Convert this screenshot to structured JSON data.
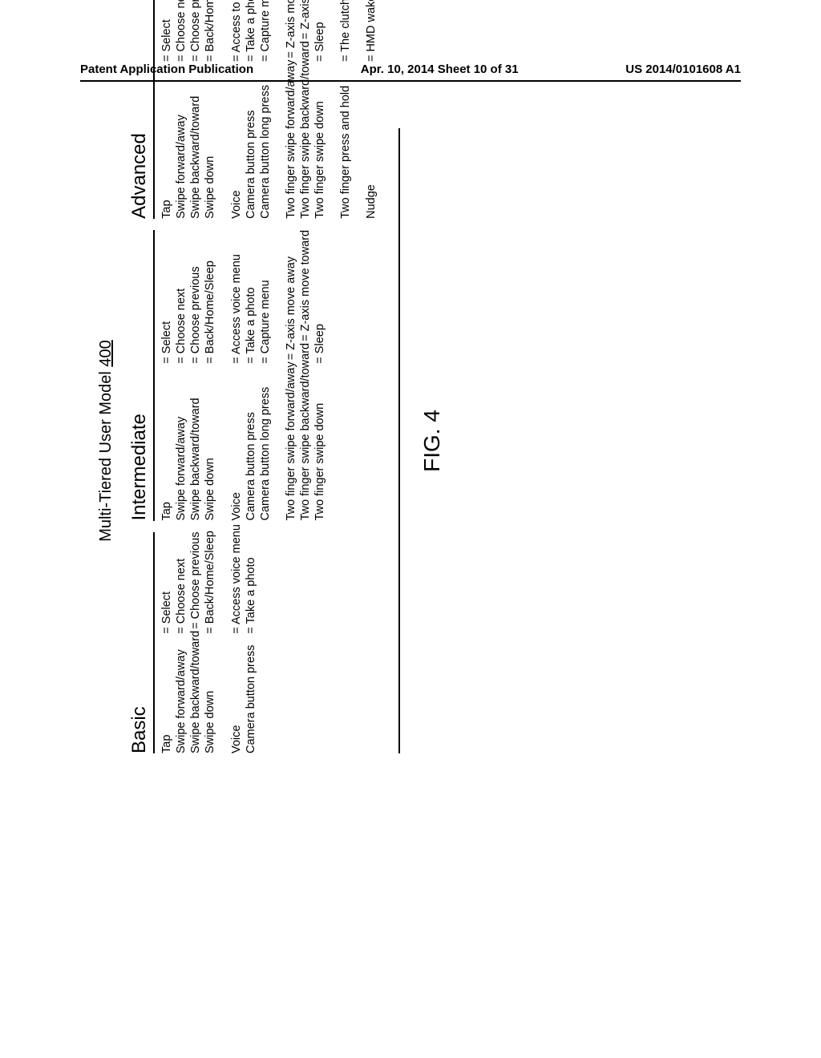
{
  "header": {
    "left": "Patent Application Publication",
    "center": "Apr. 10, 2014  Sheet 10 of 31",
    "right": "US 2014/0101608 A1"
  },
  "figure": {
    "title_prefix": "Multi-Tiered User Model ",
    "title_ref": "400",
    "label": "FIG. 4"
  },
  "tiers": [
    {
      "name": "Basic",
      "groups": [
        [
          {
            "gesture": "Tap",
            "result": "Select"
          },
          {
            "gesture": "Swipe forward/away",
            "result": "Choose next"
          },
          {
            "gesture": "Swipe backward/toward",
            "result": "Choose previous"
          },
          {
            "gesture": "Swipe down",
            "result": "Back/Home/Sleep"
          }
        ],
        [
          {
            "gesture": "Voice",
            "result": "Access voice menu"
          },
          {
            "gesture": "Camera button press",
            "result": "Take a photo"
          }
        ]
      ]
    },
    {
      "name": "Intermediate",
      "groups": [
        [
          {
            "gesture": "Tap",
            "result": "Select"
          },
          {
            "gesture": "Swipe forward/away",
            "result": "Choose next"
          },
          {
            "gesture": "Swipe backward/toward",
            "result": "Choose previous"
          },
          {
            "gesture": "Swipe down",
            "result": "Back/Home/Sleep"
          }
        ],
        [
          {
            "gesture": "Voice",
            "result": "Access voice menu"
          },
          {
            "gesture": "Camera button press",
            "result": "Take a photo"
          },
          {
            "gesture": "Camera button long press",
            "result": "Capture menu"
          }
        ],
        [
          {
            "gesture": "Two finger swipe forward/away",
            "result": "Z-axis move away"
          },
          {
            "gesture": "Two finger swipe backward/toward",
            "result": "Z-axis move toward"
          },
          {
            "gesture": "Two finger swipe down",
            "result": "Sleep"
          }
        ]
      ]
    },
    {
      "name": "Advanced",
      "groups": [
        [
          {
            "gesture": "Tap",
            "result": "Select"
          },
          {
            "gesture": "Swipe forward/away",
            "result": "Choose next"
          },
          {
            "gesture": "Swipe backward/toward",
            "result": "Choose previous"
          },
          {
            "gesture": "Swipe down",
            "result": "Back/Home/Sleep"
          }
        ],
        [
          {
            "gesture": "Voice",
            "result": "Access to voice menu"
          },
          {
            "gesture": "Camera button press",
            "result": "Take a photo"
          },
          {
            "gesture": "Camera button long press",
            "result": "Capture menu"
          }
        ],
        [
          {
            "gesture": "Two finger swipe forward/away",
            "result": "Z-axis move away"
          },
          {
            "gesture": "Two finger swipe backward/toward",
            "result": "Z-axis move toward"
          },
          {
            "gesture": "Two finger swipe down",
            "result": "Sleep"
          }
        ],
        [
          {
            "gesture": "Two finger press and hold",
            "result": "The clutch"
          }
        ],
        [
          {
            "gesture": "Nudge",
            "result": "HMD wake / sleep"
          }
        ]
      ]
    }
  ],
  "style": {
    "text_color": "#000000",
    "background": "#ffffff",
    "header_fontsize": 15,
    "tier_header_fontsize": 24,
    "body_fontsize": 14.5,
    "fig_title_fontsize": 20,
    "fig_label_fontsize": 28,
    "rule_color": "#000000",
    "rule_width": 2
  }
}
